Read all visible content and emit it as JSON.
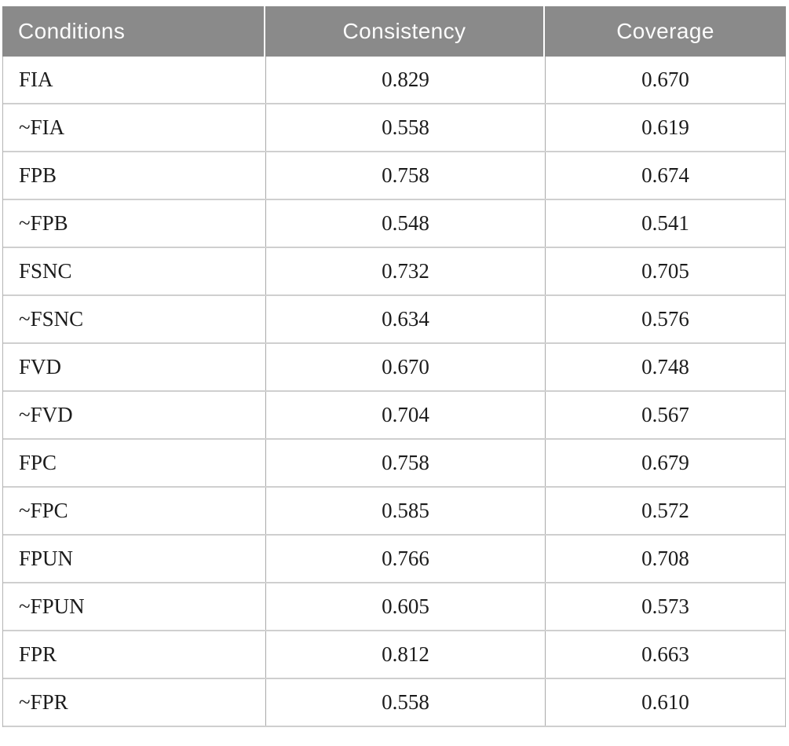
{
  "table": {
    "columns": [
      {
        "label": "Conditions"
      },
      {
        "label": "Consistency"
      },
      {
        "label": "Coverage"
      }
    ],
    "rows": [
      {
        "condition": "FIA",
        "consistency": "0.829",
        "coverage": "0.670"
      },
      {
        "condition": "~FIA",
        "consistency": "0.558",
        "coverage": "0.619"
      },
      {
        "condition": "FPB",
        "consistency": "0.758",
        "coverage": "0.674"
      },
      {
        "condition": "~FPB",
        "consistency": "0.548",
        "coverage": "0.541"
      },
      {
        "condition": "FSNC",
        "consistency": "0.732",
        "coverage": "0.705"
      },
      {
        "condition": "~FSNC",
        "consistency": "0.634",
        "coverage": "0.576"
      },
      {
        "condition": "FVD",
        "consistency": "0.670",
        "coverage": "0.748"
      },
      {
        "condition": "~FVD",
        "consistency": "0.704",
        "coverage": "0.567"
      },
      {
        "condition": "FPC",
        "consistency": "0.758",
        "coverage": "0.679"
      },
      {
        "condition": "~FPC",
        "consistency": "0.585",
        "coverage": "0.572"
      },
      {
        "condition": "FPUN",
        "consistency": "0.766",
        "coverage": "0.708"
      },
      {
        "condition": "~FPUN",
        "consistency": "0.605",
        "coverage": "0.573"
      },
      {
        "condition": "FPR",
        "consistency": "0.812",
        "coverage": "0.663"
      },
      {
        "condition": "~FPR",
        "consistency": "0.558",
        "coverage": "0.610"
      }
    ]
  },
  "colors": {
    "header_background": "#8a8a8a",
    "header_text": "#fcfcfc",
    "body_text": "#1c1c1c",
    "row_divider": "#cfcfcf",
    "column_divider": "#a9a9a9"
  },
  "chart_data": {
    "type": "table",
    "title": "",
    "columns": [
      "Conditions",
      "Consistency",
      "Coverage"
    ],
    "rows": [
      [
        "FIA",
        0.829,
        0.67
      ],
      [
        "~FIA",
        0.558,
        0.619
      ],
      [
        "FPB",
        0.758,
        0.674
      ],
      [
        "~FPB",
        0.548,
        0.541
      ],
      [
        "FSNC",
        0.732,
        0.705
      ],
      [
        "~FSNC",
        0.634,
        0.576
      ],
      [
        "FVD",
        0.67,
        0.748
      ],
      [
        "~FVD",
        0.704,
        0.567
      ],
      [
        "FPC",
        0.758,
        0.679
      ],
      [
        "~FPC",
        0.585,
        0.572
      ],
      [
        "FPUN",
        0.766,
        0.708
      ],
      [
        "~FPUN",
        0.605,
        0.573
      ],
      [
        "FPR",
        0.812,
        0.663
      ],
      [
        "~FPR",
        0.558,
        0.61
      ]
    ]
  }
}
